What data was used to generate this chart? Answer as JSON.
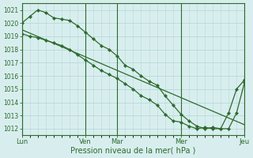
{
  "background_color": "#d8eeee",
  "grid_color": "#b8d8d8",
  "line_color": "#2d6a2d",
  "marker_color": "#2d6a2d",
  "xlabel": "Pression niveau de la mer( hPa )",
  "ylim": [
    1011.5,
    1021.5
  ],
  "yticks": [
    1012,
    1013,
    1014,
    1015,
    1016,
    1017,
    1018,
    1019,
    1020,
    1021
  ],
  "xtick_labels": [
    "Lun",
    "",
    "Ven",
    "Mar",
    "",
    "Mer",
    "",
    "Jeu"
  ],
  "xtick_positions": [
    0,
    4,
    8,
    12,
    16,
    20,
    24,
    28
  ],
  "vline_positions": [
    0,
    8,
    12,
    20,
    28
  ],
  "vline_labels": [
    "Lun",
    "Ven",
    "Mar",
    "Mer",
    "Jeu"
  ],
  "series_straight": {
    "x": [
      0,
      28
    ],
    "y": [
      1019.5,
      1012.3
    ]
  },
  "series_upper": {
    "x": [
      0,
      1,
      2,
      3,
      4,
      5,
      6,
      7,
      8,
      9,
      10,
      11,
      12,
      13,
      14,
      15,
      16,
      17,
      18,
      19,
      20,
      21,
      22,
      23,
      24,
      25,
      26,
      27,
      28
    ],
    "y": [
      1020.0,
      1020.5,
      1021.0,
      1020.8,
      1020.4,
      1020.3,
      1020.2,
      1019.8,
      1019.3,
      1018.8,
      1018.3,
      1018.0,
      1017.5,
      1016.8,
      1016.5,
      1016.0,
      1015.6,
      1015.3,
      1014.5,
      1013.8,
      1013.1,
      1012.6,
      1012.2,
      1012.0,
      1012.1,
      1012.0,
      1012.0,
      1013.2,
      1015.5
    ]
  },
  "series_lower": {
    "x": [
      0,
      1,
      2,
      3,
      4,
      5,
      6,
      7,
      8,
      9,
      10,
      11,
      12,
      13,
      14,
      15,
      16,
      17,
      18,
      19,
      20,
      21,
      22,
      23,
      24,
      25,
      26,
      27,
      28
    ],
    "y": [
      1019.2,
      1019.0,
      1018.9,
      1018.7,
      1018.5,
      1018.3,
      1018.0,
      1017.6,
      1017.2,
      1016.8,
      1016.4,
      1016.1,
      1015.8,
      1015.4,
      1015.0,
      1014.5,
      1014.2,
      1013.8,
      1013.1,
      1012.6,
      1012.5,
      1012.2,
      1012.0,
      1012.1,
      1012.0,
      1012.0,
      1013.2,
      1015.0,
      1015.7
    ]
  }
}
